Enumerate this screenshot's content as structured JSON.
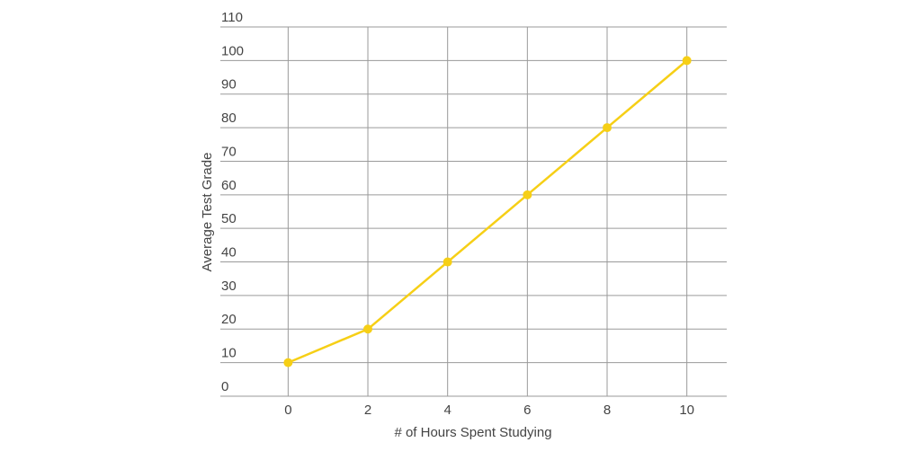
{
  "chart_data": {
    "type": "line",
    "x_label": "# of Hours Spent Studying",
    "y_label": "Average Test Grade",
    "x": [
      0,
      2,
      4,
      6,
      8,
      10
    ],
    "series": [
      {
        "name": "Average Test Grade",
        "color": "#f6cf16",
        "values": [
          10,
          20,
          40,
          60,
          80,
          100
        ]
      }
    ],
    "xlim": [
      -1.7,
      11
    ],
    "xticks": [
      0,
      2,
      4,
      6,
      8,
      10
    ],
    "ylim": [
      0,
      110
    ],
    "yticks": [
      0,
      10,
      20,
      30,
      40,
      50,
      60,
      70,
      80,
      90,
      100,
      110
    ],
    "grid": true
  }
}
